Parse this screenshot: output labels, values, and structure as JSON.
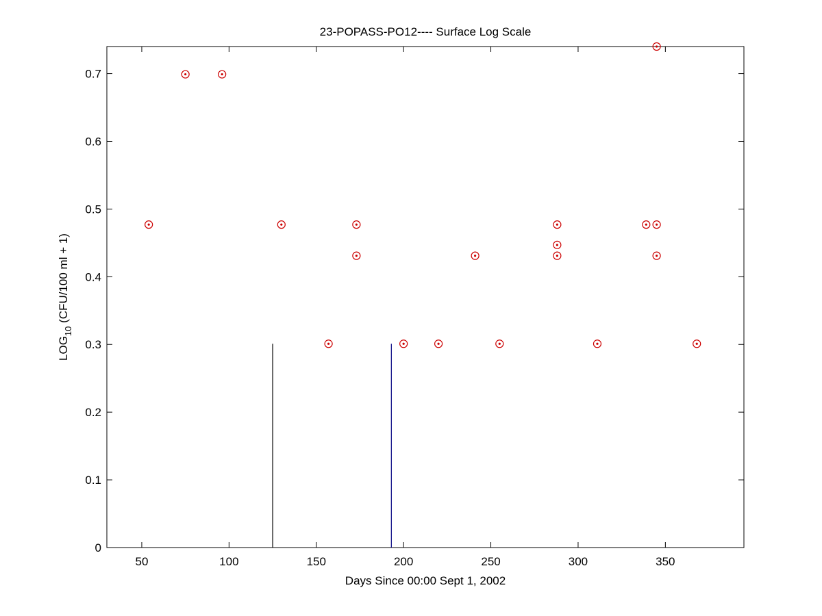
{
  "chart_data": {
    "type": "scatter",
    "title": "23-POPASS-PO12---- Surface Log Scale",
    "xlabel": "Days Since 00:00 Sept 1, 2002",
    "ylabel": {
      "main": "LOG",
      "subscript": "10",
      "rest": " (CFU/100 ml + 1)"
    },
    "xlim": [
      30,
      395
    ],
    "ylim": [
      0,
      0.74
    ],
    "xticks": [
      50,
      100,
      150,
      200,
      250,
      300,
      350
    ],
    "yticks": [
      0,
      0.1,
      0.2,
      0.3,
      0.4,
      0.5,
      0.6,
      0.7
    ],
    "grid": false,
    "marker_color": "#cc0000",
    "points": [
      {
        "x": 54,
        "y": 0.477
      },
      {
        "x": 75,
        "y": 0.699
      },
      {
        "x": 96,
        "y": 0.699
      },
      {
        "x": 130,
        "y": 0.477
      },
      {
        "x": 157,
        "y": 0.301
      },
      {
        "x": 173,
        "y": 0.477
      },
      {
        "x": 173,
        "y": 0.431
      },
      {
        "x": 200,
        "y": 0.301
      },
      {
        "x": 220,
        "y": 0.301
      },
      {
        "x": 241,
        "y": 0.431
      },
      {
        "x": 255,
        "y": 0.301
      },
      {
        "x": 288,
        "y": 0.477
      },
      {
        "x": 288,
        "y": 0.447
      },
      {
        "x": 288,
        "y": 0.431
      },
      {
        "x": 311,
        "y": 0.301
      },
      {
        "x": 339,
        "y": 0.477
      },
      {
        "x": 345,
        "y": 0.477
      },
      {
        "x": 345,
        "y": 0.431
      },
      {
        "x": 345,
        "y": 0.74
      },
      {
        "x": 368,
        "y": 0.301
      }
    ],
    "reference_lines": [
      {
        "x": 125,
        "y": 0.301,
        "color": "#000000"
      },
      {
        "x": 193,
        "y": 0.301,
        "color": "#000080"
      }
    ]
  }
}
